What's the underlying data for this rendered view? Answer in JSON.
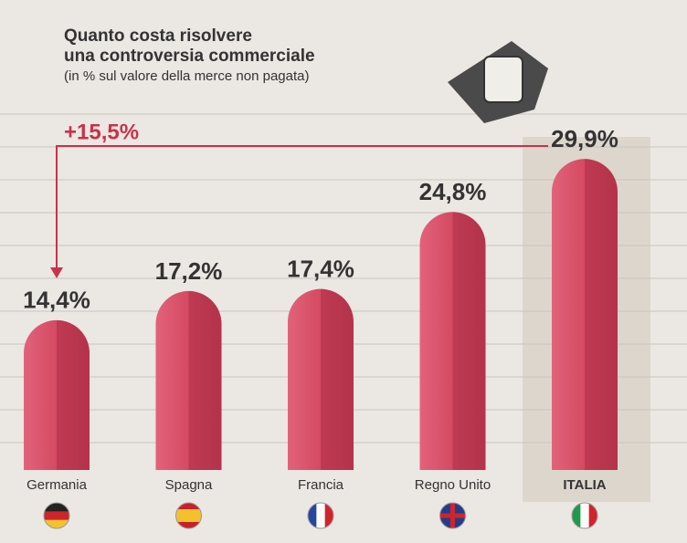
{
  "chart_data": {
    "type": "bar",
    "title": [
      "Quanto costa risolvere",
      "una controversia commerciale"
    ],
    "subtitle": "(in % sul valore della merce non pagata)",
    "annotation": "+15,5%",
    "categories": [
      "Germania",
      "Spagna",
      "Francia",
      "Regno Unito",
      "ITALIA"
    ],
    "values": [
      14.4,
      17.2,
      17.4,
      24.8,
      29.9
    ],
    "value_labels": [
      "14,4%",
      "17,2%",
      "17,4%",
      "24,8%",
      "29,9%"
    ],
    "color": "#d44a62"
  }
}
